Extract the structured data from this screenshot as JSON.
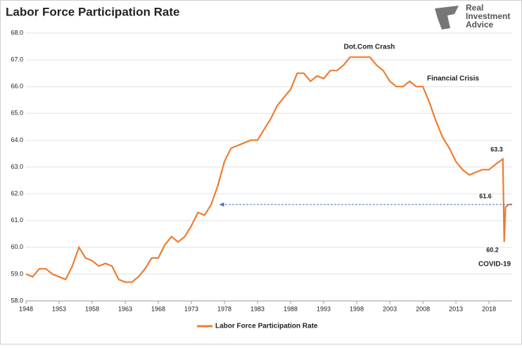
{
  "chart_data": {
    "type": "line",
    "title": "Labor Force Participation Rate",
    "logo": [
      "Real",
      "Investment",
      "Advice"
    ],
    "x": [
      1948,
      1949,
      1950,
      1951,
      1952,
      1953,
      1954,
      1955,
      1956,
      1957,
      1958,
      1959,
      1960,
      1961,
      1962,
      1963,
      1964,
      1965,
      1966,
      1967,
      1968,
      1969,
      1970,
      1971,
      1972,
      1973,
      1974,
      1975,
      1976,
      1977,
      1978,
      1979,
      1980,
      1981,
      1982,
      1983,
      1984,
      1985,
      1986,
      1987,
      1988,
      1989,
      1990,
      1991,
      1992,
      1993,
      1994,
      1995,
      1996,
      1997,
      1998,
      1999,
      2000,
      2001,
      2002,
      2003,
      2004,
      2005,
      2006,
      2007,
      2008,
      2009,
      2010,
      2011,
      2012,
      2013,
      2014,
      2015,
      2016,
      2017,
      2018,
      2019,
      2020.1,
      2020.3,
      2020.5,
      2021,
      2021.5
    ],
    "series": [
      {
        "name": "Labor Force Participation Rate",
        "color": "#ED7D31",
        "values": [
          59.0,
          58.9,
          59.2,
          59.2,
          59.0,
          58.9,
          58.8,
          59.3,
          60.0,
          59.6,
          59.5,
          59.3,
          59.4,
          59.3,
          58.8,
          58.7,
          58.7,
          58.9,
          59.2,
          59.6,
          59.6,
          60.1,
          60.4,
          60.2,
          60.4,
          60.8,
          61.3,
          61.2,
          61.6,
          62.3,
          63.2,
          63.7,
          63.8,
          63.9,
          64.0,
          64.0,
          64.4,
          64.8,
          65.3,
          65.6,
          65.9,
          66.5,
          66.5,
          66.2,
          66.4,
          66.3,
          66.6,
          66.6,
          66.8,
          67.1,
          67.1,
          67.1,
          67.1,
          66.8,
          66.6,
          66.2,
          66.0,
          66.0,
          66.2,
          66.0,
          66.0,
          65.4,
          64.7,
          64.1,
          63.7,
          63.2,
          62.9,
          62.7,
          62.8,
          62.9,
          62.9,
          63.1,
          63.3,
          60.2,
          61.5,
          61.6,
          61.6
        ]
      }
    ],
    "xlim": [
      1948,
      2021.5
    ],
    "ylim": [
      58,
      68
    ],
    "xticks": [
      1948,
      1953,
      1958,
      1963,
      1968,
      1973,
      1978,
      1983,
      1988,
      1993,
      1998,
      2003,
      2008,
      2013,
      2018
    ],
    "yticks": [
      {
        "value": 58,
        "label": "58.0"
      },
      {
        "value": 59,
        "label": "59.0"
      },
      {
        "value": 60,
        "label": "60.0"
      },
      {
        "value": 61,
        "label": "61.0"
      },
      {
        "value": 62,
        "label": "62.0"
      },
      {
        "value": 63,
        "label": "63.0"
      },
      {
        "value": 64,
        "label": "64.0"
      },
      {
        "value": 65,
        "label": "65.0"
      },
      {
        "value": 66,
        "label": "66.0"
      },
      {
        "value": 67,
        "label": "67.0"
      },
      {
        "value": 68,
        "label": "68.0"
      }
    ],
    "grid": true,
    "annotations": [
      {
        "text": "Dot.Com Crash"
      },
      {
        "text": "Financial Crisis"
      },
      {
        "label": "63.3",
        "value": 63.3
      },
      {
        "label": "61.6",
        "value": 61.6
      },
      {
        "label": "60.2",
        "value": 60.2
      },
      {
        "text": "COVID-19"
      }
    ]
  }
}
